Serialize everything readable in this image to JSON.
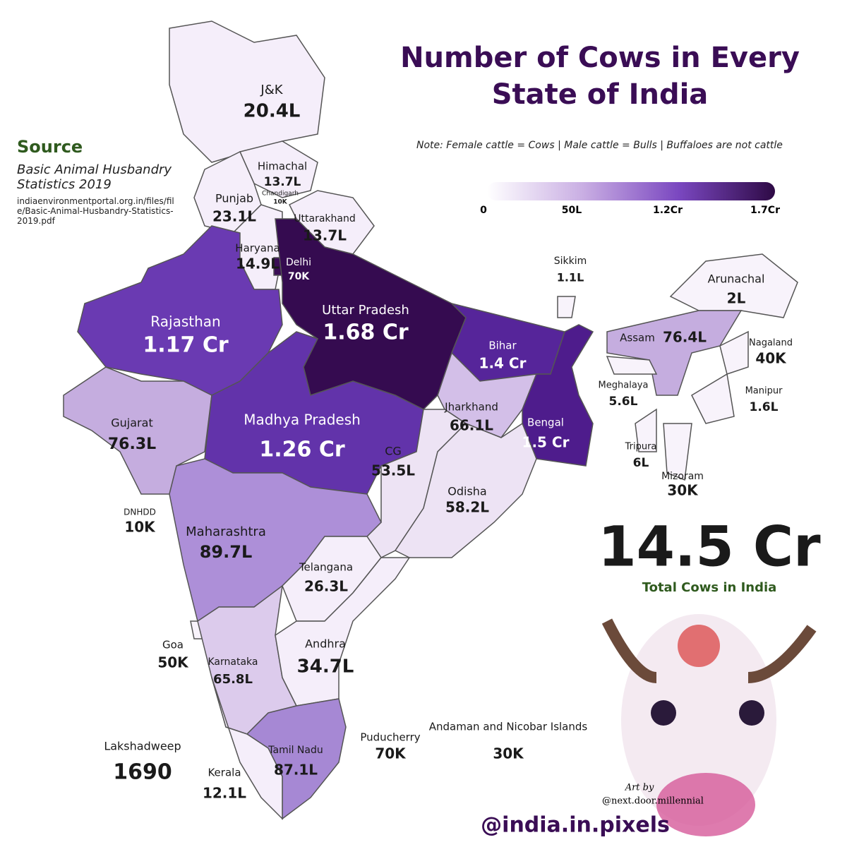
{
  "title": "Number of Cows in Every State of India",
  "note": "Note: Female cattle = Cows | Male cattle = Bulls | Buffaloes are not cattle",
  "source": {
    "heading": "Source",
    "name": "Basic Animal Husbandry Statistics 2019",
    "url": "indiaenvironmentportal.org.in/files/file/Basic-Animal-Husbandry-Statistics-2019.pdf"
  },
  "legend": {
    "colors": [
      "#ffffff",
      "#c9aee3",
      "#7a47c0",
      "#2e0a45"
    ],
    "ticks": [
      "0",
      "50L",
      "1.2Cr",
      "1.7Cr"
    ]
  },
  "states": [
    {
      "name": "J&K",
      "value": "20.4L",
      "color": "#f5eefa"
    },
    {
      "name": "Himachal",
      "value": "13.7L",
      "color": "#f5eefa"
    },
    {
      "name": "Chandigarh",
      "value": "10K",
      "color": "#f5eefa"
    },
    {
      "name": "Punjab",
      "value": "23.1L",
      "color": "#f5eefa"
    },
    {
      "name": "Uttarakhand",
      "value": "13.7L",
      "color": "#f5eefa"
    },
    {
      "name": "Haryana",
      "value": "14.9L",
      "color": "#f5eefa"
    },
    {
      "name": "Delhi",
      "value": "70K",
      "color": "#3a0d55"
    },
    {
      "name": "Uttar Pradesh",
      "value": "1.68 Cr",
      "color": "#350b50"
    },
    {
      "name": "Rajasthan",
      "value": "1.17 Cr",
      "color": "#6a3ab2"
    },
    {
      "name": "Bihar",
      "value": "1.4 Cr",
      "color": "#56259a"
    },
    {
      "name": "Gujarat",
      "value": "76.3L",
      "color": "#c5addf"
    },
    {
      "name": "Madhya Pradesh",
      "value": "1.26 Cr",
      "color": "#6233aa"
    },
    {
      "name": "Jharkhand",
      "value": "66.1L",
      "color": "#d3bfe8"
    },
    {
      "name": "Bengal",
      "value": "1.5 Cr",
      "color": "#4e1c8c"
    },
    {
      "name": "CG",
      "value": "53.5L",
      "color": "#ede3f4"
    },
    {
      "name": "Odisha",
      "value": "58.2L",
      "color": "#ede3f4"
    },
    {
      "name": "Sikkim",
      "value": "1.1L",
      "color": "#f8f3fb"
    },
    {
      "name": "Arunachal",
      "value": "2L",
      "color": "#f8f3fb"
    },
    {
      "name": "Assam",
      "value": "76.4L",
      "color": "#c5addf"
    },
    {
      "name": "Nagaland",
      "value": "40K",
      "color": "#f8f3fb"
    },
    {
      "name": "Meghalaya",
      "value": "5.6L",
      "color": "#f8f3fb"
    },
    {
      "name": "Manipur",
      "value": "1.6L",
      "color": "#f8f3fb"
    },
    {
      "name": "Tripura",
      "value": "6L",
      "color": "#f8f3fb"
    },
    {
      "name": "Mizoram",
      "value": "30K",
      "color": "#f8f3fb"
    },
    {
      "name": "DNHDD",
      "value": "10K",
      "color": "#f8f3fb"
    },
    {
      "name": "Maharashtra",
      "value": "89.7L",
      "color": "#ad8fd8"
    },
    {
      "name": "Telangana",
      "value": "26.3L",
      "color": "#f5eefa"
    },
    {
      "name": "Goa",
      "value": "50K",
      "color": "#f8f3fb"
    },
    {
      "name": "Karnataka",
      "value": "65.8L",
      "color": "#dccbec"
    },
    {
      "name": "Andhra",
      "value": "34.7L",
      "color": "#f5eefa"
    },
    {
      "name": "Lakshadweep",
      "value": "1690",
      "color": "#ffffff"
    },
    {
      "name": "Puducherry",
      "value": "70K",
      "color": "#f8f3fb"
    },
    {
      "name": "Andaman and Nicobar Islands",
      "value": "30K",
      "color": "#f8f3fb"
    },
    {
      "name": "Tamil Nadu",
      "value": "87.1L",
      "color": "#a688d4"
    },
    {
      "name": "Kerala",
      "value": "12.1L",
      "color": "#f5eefa"
    }
  ],
  "total": {
    "value": "14.5 Cr",
    "label": "Total Cows in India"
  },
  "credits": {
    "art_by": "Art by",
    "artist": "@next.door.millennial",
    "handle": "@india.in.pixels"
  }
}
